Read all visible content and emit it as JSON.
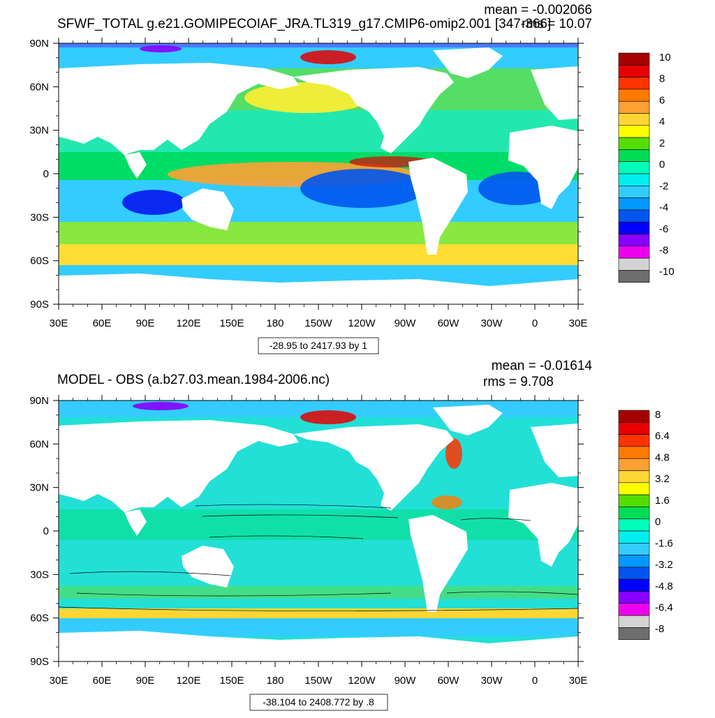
{
  "chart_data": [
    {
      "type": "heatmap",
      "title": "SFWF_TOTAL g.e21.GOMIPECOIAF_JRA.TL319_g17.CMIP6-omip2.001 [347-366]",
      "stats": {
        "mean": "mean = -0.002066",
        "rms": "rms = 10.07"
      },
      "xlabel": "",
      "ylabel": "",
      "x_ticks": [
        "30E",
        "60E",
        "90E",
        "120E",
        "150E",
        "180",
        "150W",
        "120W",
        "90W",
        "60W",
        "30W",
        "0",
        "30E"
      ],
      "y_ticks": [
        "90N",
        "60N",
        "30N",
        "0",
        "30S",
        "60S",
        "90S"
      ],
      "colorbar": {
        "labels": [
          "10",
          "8",
          "6",
          "4",
          "2",
          "0",
          "-2",
          "-4",
          "-6",
          "-8",
          "-10"
        ],
        "colors": [
          "#a50000",
          "#e60000",
          "#ff3300",
          "#ff7a00",
          "#ffa033",
          "#ffd633",
          "#ffff00",
          "#55dd00",
          "#00dd55",
          "#00ffbb",
          "#00eeee",
          "#33ccff",
          "#0099ff",
          "#0055ee",
          "#0000ff",
          "#8800ff",
          "#ee00ee",
          "#d3d3d3",
          "#6e6e6e"
        ]
      },
      "info_box": "-28.95 to 2417.93 by 1"
    },
    {
      "type": "heatmap",
      "title": "MODEL - OBS (a.b27.03.mean.1984-2006.nc)",
      "stats": {
        "mean": "mean = -0.01614",
        "rms": "rms = 9.708"
      },
      "xlabel": "",
      "ylabel": "",
      "x_ticks": [
        "30E",
        "60E",
        "90E",
        "120E",
        "150E",
        "180",
        "150W",
        "120W",
        "90W",
        "60W",
        "30W",
        "0",
        "30E"
      ],
      "y_ticks": [
        "90N",
        "60N",
        "30N",
        "0",
        "30S",
        "60S",
        "90S"
      ],
      "colorbar": {
        "labels": [
          "8",
          "6.4",
          "4.8",
          "3.2",
          "1.6",
          "0",
          "-1.6",
          "-3.2",
          "-4.8",
          "-6.4",
          "-8"
        ],
        "colors": [
          "#a50000",
          "#e60000",
          "#ff3300",
          "#ff7a00",
          "#ffa033",
          "#ffd633",
          "#ffff00",
          "#55dd00",
          "#00dd55",
          "#00ffbb",
          "#00eeee",
          "#33ccff",
          "#0099ff",
          "#0055ee",
          "#0000ff",
          "#8800ff",
          "#ee00ee",
          "#d3d3d3",
          "#6e6e6e"
        ]
      },
      "info_box": "-38.104 to 2408.772 by .8"
    }
  ]
}
